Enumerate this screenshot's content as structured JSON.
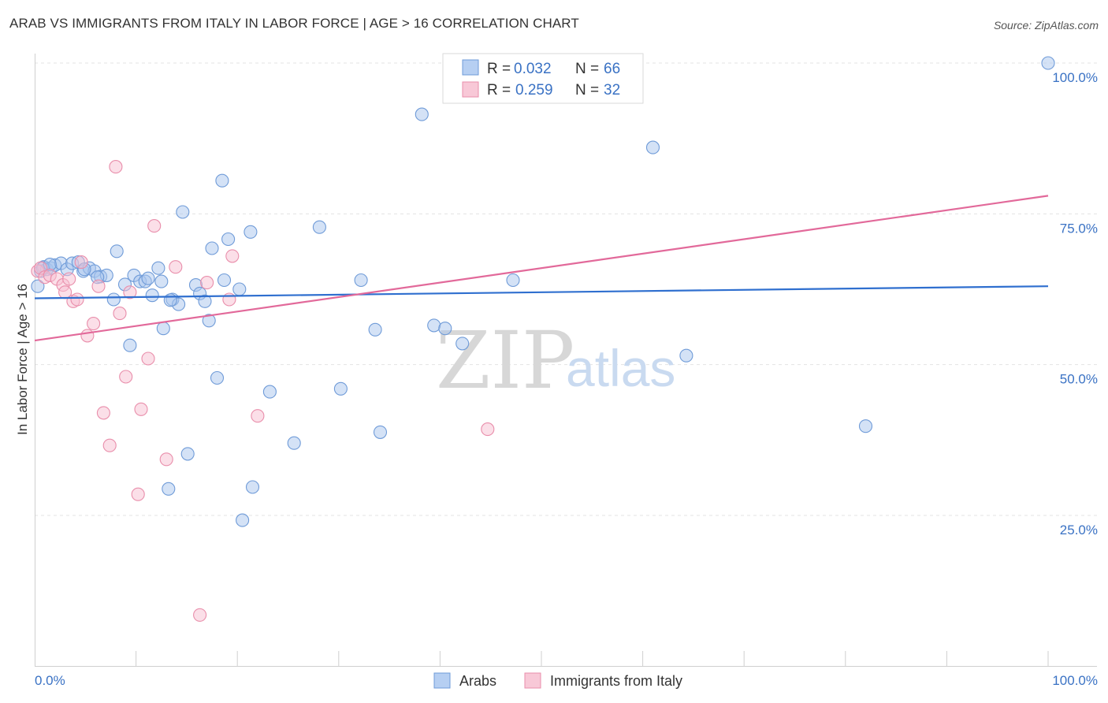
{
  "header": {
    "title": "ARAB VS IMMIGRANTS FROM ITALY IN LABOR FORCE | AGE > 16 CORRELATION CHART",
    "source": "Source: ZipAtlas.com"
  },
  "watermark": {
    "zip": "ZIP",
    "atlas": "atlas"
  },
  "colors": {
    "arab_fill": "#a9c6ee",
    "arab_stroke": "#6f9bd8",
    "arab_line": "#2f6fcf",
    "italy_fill": "#f7c0d2",
    "italy_stroke": "#e98eab",
    "italy_line": "#e2699a",
    "tick_label": "#3a72c4",
    "grid": "#e3e3e3"
  },
  "legend": {
    "rows": [
      {
        "r_label": "R =",
        "r_value": "0.032",
        "n_label": "N =",
        "n_value": "66"
      },
      {
        "r_label": "R =",
        "r_value": "0.259",
        "n_label": "N =",
        "n_value": "32"
      }
    ]
  },
  "chart_data": {
    "type": "scatter",
    "title": "ARAB VS IMMIGRANTS FROM ITALY IN LABOR FORCE | AGE > 16 CORRELATION CHART",
    "xlabel": "",
    "ylabel": "In Labor Force | Age > 16",
    "xlim": [
      0,
      100
    ],
    "ylim": [
      0,
      102
    ],
    "x_tick_labels": [
      "0.0%",
      "100.0%"
    ],
    "y_ticks": [
      25,
      50,
      75,
      100
    ],
    "y_tick_labels": [
      "25.0%",
      "50.0%",
      "75.0%",
      "100.0%"
    ],
    "grid": true,
    "legend_position": "top-center",
    "series": [
      {
        "name": "Arabs",
        "trend": {
          "x": [
            0,
            100
          ],
          "y": [
            61.0,
            63.0
          ]
        },
        "points": [
          [
            0.3,
            63.0
          ],
          [
            0.6,
            65.5
          ],
          [
            0.9,
            66.2
          ],
          [
            1.2,
            65.8
          ],
          [
            1.6,
            66.0
          ],
          [
            2.0,
            66.5
          ],
          [
            2.6,
            66.8
          ],
          [
            3.2,
            65.8
          ],
          [
            3.7,
            66.8
          ],
          [
            4.3,
            67.0
          ],
          [
            4.8,
            65.5
          ],
          [
            5.4,
            66.0
          ],
          [
            5.9,
            65.5
          ],
          [
            6.5,
            64.6
          ],
          [
            7.1,
            64.8
          ],
          [
            7.8,
            60.8
          ],
          [
            8.1,
            68.8
          ],
          [
            8.9,
            63.3
          ],
          [
            9.4,
            53.2
          ],
          [
            9.8,
            64.8
          ],
          [
            10.4,
            63.8
          ],
          [
            10.9,
            63.8
          ],
          [
            11.2,
            64.3
          ],
          [
            11.6,
            61.5
          ],
          [
            12.2,
            66.0
          ],
          [
            12.5,
            63.8
          ],
          [
            12.7,
            56.0
          ],
          [
            13.6,
            60.8
          ],
          [
            14.2,
            60.0
          ],
          [
            14.6,
            75.3
          ],
          [
            15.9,
            63.2
          ],
          [
            16.3,
            61.8
          ],
          [
            16.8,
            60.5
          ],
          [
            17.2,
            57.3
          ],
          [
            17.5,
            69.3
          ],
          [
            18.0,
            47.8
          ],
          [
            18.5,
            80.5
          ],
          [
            18.7,
            64.0
          ],
          [
            19.1,
            70.8
          ],
          [
            20.2,
            62.5
          ],
          [
            21.3,
            72.0
          ],
          [
            23.2,
            45.5
          ],
          [
            25.6,
            37.0
          ],
          [
            28.1,
            72.8
          ],
          [
            30.2,
            46.0
          ],
          [
            32.2,
            64.0
          ],
          [
            33.6,
            55.8
          ],
          [
            34.1,
            38.8
          ],
          [
            38.2,
            91.5
          ],
          [
            39.4,
            56.5
          ],
          [
            40.5,
            56.0
          ],
          [
            42.2,
            53.5
          ],
          [
            47.2,
            64.0
          ],
          [
            61.0,
            86.0
          ],
          [
            64.3,
            51.5
          ],
          [
            82.0,
            39.8
          ],
          [
            100.0,
            100.0
          ],
          [
            0.8,
            66.0
          ],
          [
            1.5,
            66.6
          ],
          [
            6.2,
            64.5
          ],
          [
            13.4,
            60.7
          ],
          [
            15.1,
            35.2
          ],
          [
            13.2,
            29.4
          ],
          [
            20.5,
            24.2
          ],
          [
            21.5,
            29.7
          ],
          [
            4.9,
            65.8
          ]
        ]
      },
      {
        "name": "Immigrants from Italy",
        "trend": {
          "x": [
            0,
            100
          ],
          "y": [
            54.0,
            78.0
          ]
        },
        "points": [
          [
            0.3,
            65.5
          ],
          [
            0.6,
            66.0
          ],
          [
            1.0,
            64.5
          ],
          [
            1.5,
            64.8
          ],
          [
            2.2,
            64.2
          ],
          [
            2.8,
            63.2
          ],
          [
            3.0,
            62.0
          ],
          [
            3.4,
            64.2
          ],
          [
            3.8,
            60.5
          ],
          [
            4.2,
            60.8
          ],
          [
            4.6,
            67.0
          ],
          [
            5.2,
            54.8
          ],
          [
            5.8,
            56.8
          ],
          [
            6.3,
            63.0
          ],
          [
            6.8,
            42.0
          ],
          [
            7.4,
            36.6
          ],
          [
            8.0,
            82.8
          ],
          [
            8.4,
            58.5
          ],
          [
            9.0,
            48.0
          ],
          [
            9.4,
            62.0
          ],
          [
            10.2,
            28.5
          ],
          [
            10.5,
            42.6
          ],
          [
            11.2,
            51.0
          ],
          [
            11.8,
            73.0
          ],
          [
            13.0,
            34.3
          ],
          [
            13.9,
            66.2
          ],
          [
            16.3,
            8.5
          ],
          [
            17.0,
            63.6
          ],
          [
            19.2,
            60.8
          ],
          [
            19.5,
            68.0
          ],
          [
            22.0,
            41.5
          ],
          [
            44.7,
            39.3
          ]
        ]
      }
    ]
  }
}
